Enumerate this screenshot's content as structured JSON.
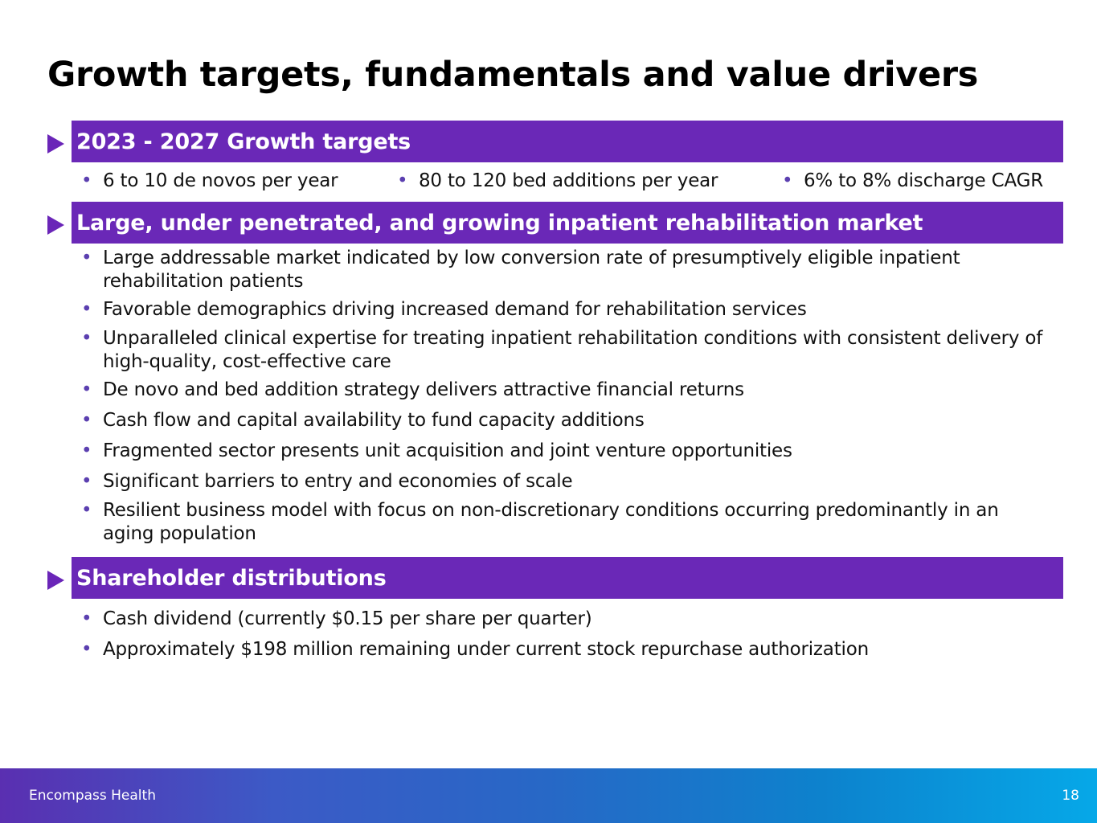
{
  "title": "Growth targets, fundamentals and value drivers",
  "sections": [
    {
      "heading": "2023 - 2027 Growth targets",
      "bullets": [
        "6 to 10 de novos per year",
        "80 to 120 bed additions per year",
        "6% to 8% discharge CAGR"
      ]
    },
    {
      "heading": "Large, under penetrated, and growing inpatient rehabilitation market",
      "bullets": [
        "Large addressable market indicated by low conversion rate of presumptively eligible inpatient rehabilitation patients",
        "Favorable demographics driving increased demand for rehabilitation services",
        "Unparalleled clinical expertise for treating inpatient rehabilitation conditions with consistent delivery of high-quality, cost-effective care",
        "De novo and bed addition strategy delivers attractive financial returns",
        "Cash flow and capital availability to fund capacity additions",
        "Fragmented sector presents unit acquisition and joint venture opportunities",
        "Significant barriers to entry and economies of scale",
        "Resilient business model with focus on non-discretionary conditions occurring predominantly in an aging population"
      ]
    },
    {
      "heading": "Shareholder distributions",
      "bullets": [
        "Cash dividend (currently $0.15 per share per quarter)",
        "Approximately $198 million remaining under current stock repurchase authorization"
      ]
    }
  ],
  "footer": {
    "brand": "Encompass Health",
    "page_number": "18"
  },
  "colors": {
    "section_bar": "#6a28b7",
    "footer_gradient_start": "#5a2fb1",
    "footer_gradient_end": "#06a8e8"
  }
}
